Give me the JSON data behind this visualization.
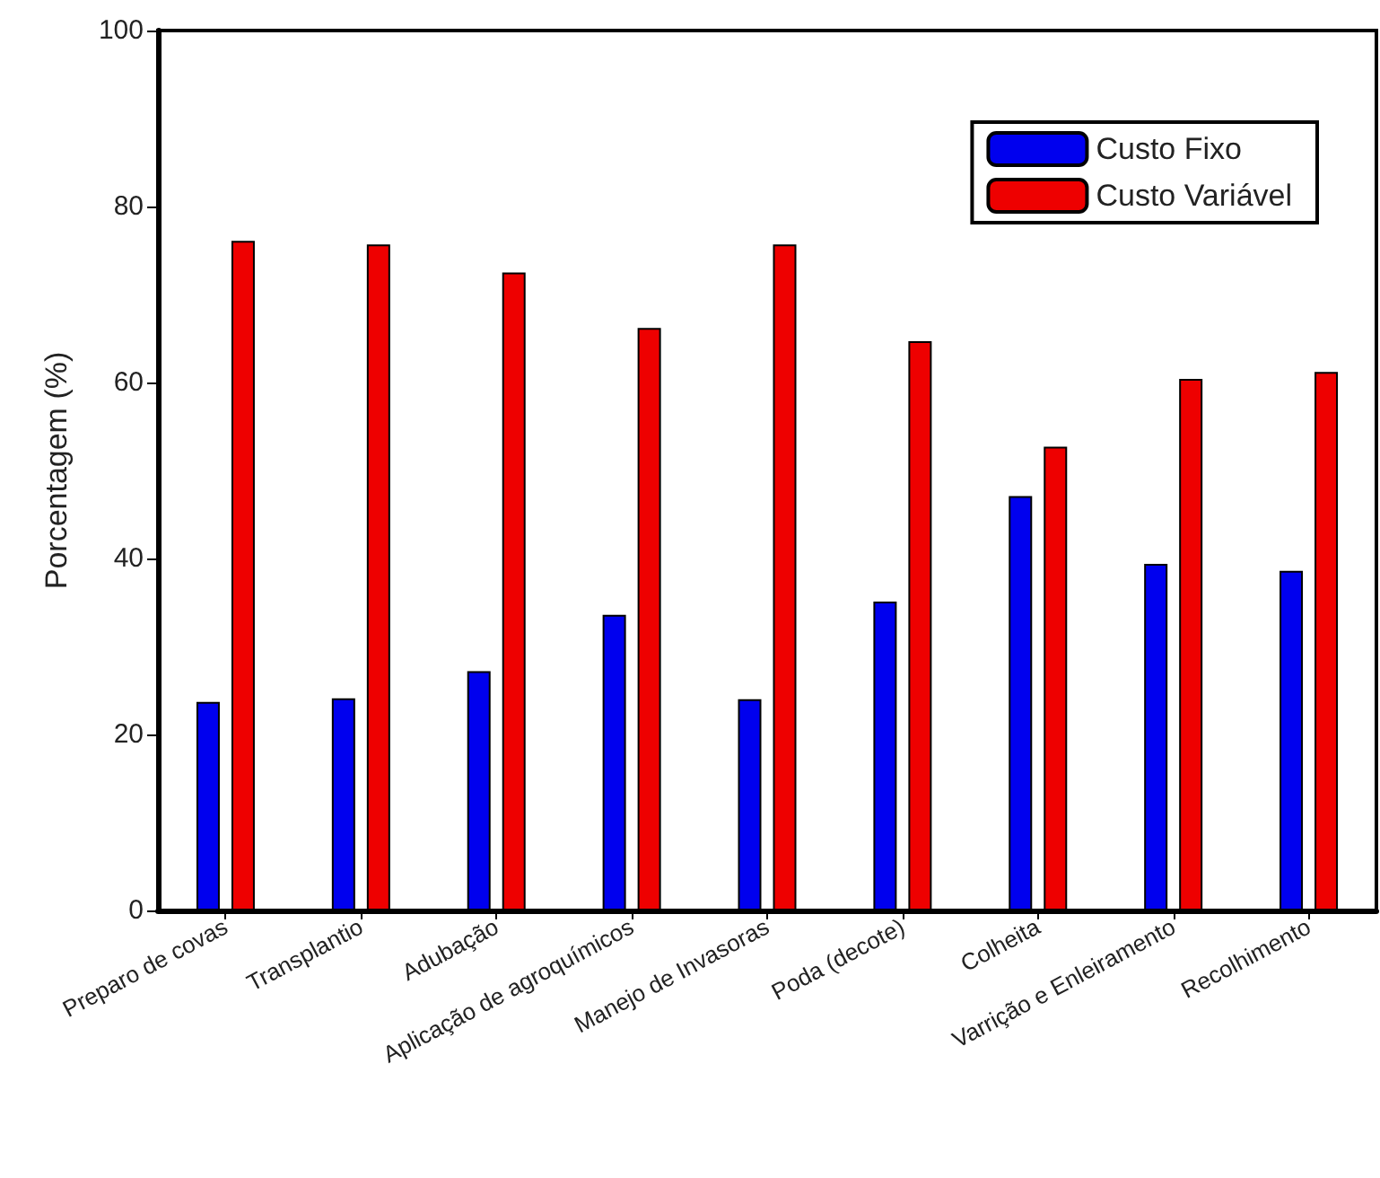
{
  "chart_data": {
    "type": "bar",
    "ylabel": "Porcentagem (%)",
    "categories": [
      "Preparo de covas",
      "Transplantio",
      "Adubação",
      "Aplicação de agroquímicos",
      "Manejo de Invasoras",
      "Poda (decote)",
      "Colheita",
      "Varrição e Enleiramento",
      "Recolhimento"
    ],
    "series": [
      {
        "name": "Custo Fixo",
        "color": "#0000ee",
        "values": [
          23.7,
          24.1,
          27.2,
          33.6,
          24.0,
          35.1,
          47.1,
          39.4,
          38.6
        ]
      },
      {
        "name": "Custo Variável",
        "color": "#ee0000",
        "values": [
          76.1,
          75.7,
          72.5,
          66.2,
          75.7,
          64.7,
          52.7,
          60.4,
          61.2
        ]
      }
    ],
    "ylim": [
      0,
      100
    ],
    "yticks": [
      0,
      20,
      40,
      60,
      80,
      100
    ],
    "grid": false,
    "legend": "top right"
  }
}
